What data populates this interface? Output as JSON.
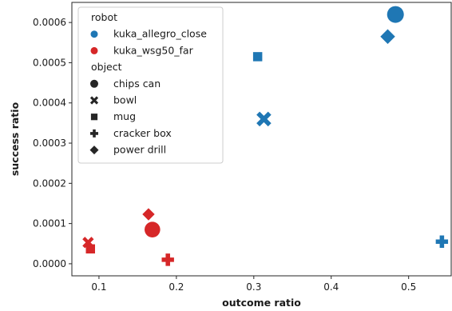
{
  "chart_data": {
    "type": "scatter",
    "title": "",
    "xlabel": "outcome ratio",
    "ylabel": "success ratio",
    "xlim": [
      0.065,
      0.555
    ],
    "ylim": [
      -3e-05,
      0.00065
    ],
    "xticks": [
      0.1,
      0.2,
      0.3,
      0.4,
      0.5
    ],
    "xtick_labels": [
      "0.1",
      "0.2",
      "0.3",
      "0.4",
      "0.5"
    ],
    "yticks": [
      0,
      0.0001,
      0.0002,
      0.0003,
      0.0004,
      0.0005,
      0.0006
    ],
    "ytick_labels": [
      "0.0000",
      "0.0001",
      "0.0002",
      "0.0003",
      "0.0004",
      "0.0005",
      "0.0006"
    ],
    "grid": false,
    "legend_placement": "top-left",
    "legend": {
      "hue_title": "robot",
      "hue": [
        {
          "label": "kuka_allegro_close",
          "color": "#1f77b4"
        },
        {
          "label": "kuka_wsg50_far",
          "color": "#d62728"
        }
      ],
      "style_title": "object",
      "style": [
        {
          "label": "chips can",
          "marker": "circle"
        },
        {
          "label": "bowl",
          "marker": "x"
        },
        {
          "label": "mug",
          "marker": "square"
        },
        {
          "label": "cracker box",
          "marker": "plus"
        },
        {
          "label": "power drill",
          "marker": "diamond"
        }
      ]
    },
    "series": [
      {
        "name": "kuka_allegro_close",
        "color": "#1f77b4",
        "points": [
          {
            "object": "chips can",
            "marker": "circle",
            "x": 0.483,
            "y": 0.00062,
            "size": 1.5
          },
          {
            "object": "power drill",
            "marker": "diamond",
            "x": 0.473,
            "y": 0.000565,
            "size": 1.2
          },
          {
            "object": "mug",
            "marker": "square",
            "x": 0.305,
            "y": 0.000515,
            "size": 1.0
          },
          {
            "object": "bowl",
            "marker": "x",
            "x": 0.313,
            "y": 0.00036,
            "size": 1.3
          },
          {
            "object": "cracker box",
            "marker": "plus",
            "x": 0.543,
            "y": 5.5e-05,
            "size": 1.1
          }
        ]
      },
      {
        "name": "kuka_wsg50_far",
        "color": "#d62728",
        "points": [
          {
            "object": "power drill",
            "marker": "diamond",
            "x": 0.164,
            "y": 0.000123,
            "size": 1.0
          },
          {
            "object": "chips can",
            "marker": "circle",
            "x": 0.169,
            "y": 8.5e-05,
            "size": 1.4
          },
          {
            "object": "bowl",
            "marker": "x",
            "x": 0.086,
            "y": 5.3e-05,
            "size": 1.0
          },
          {
            "object": "mug",
            "marker": "square",
            "x": 0.089,
            "y": 3.7e-05,
            "size": 1.0
          },
          {
            "object": "cracker box",
            "marker": "plus",
            "x": 0.189,
            "y": 1e-05,
            "size": 1.1
          }
        ]
      }
    ]
  }
}
